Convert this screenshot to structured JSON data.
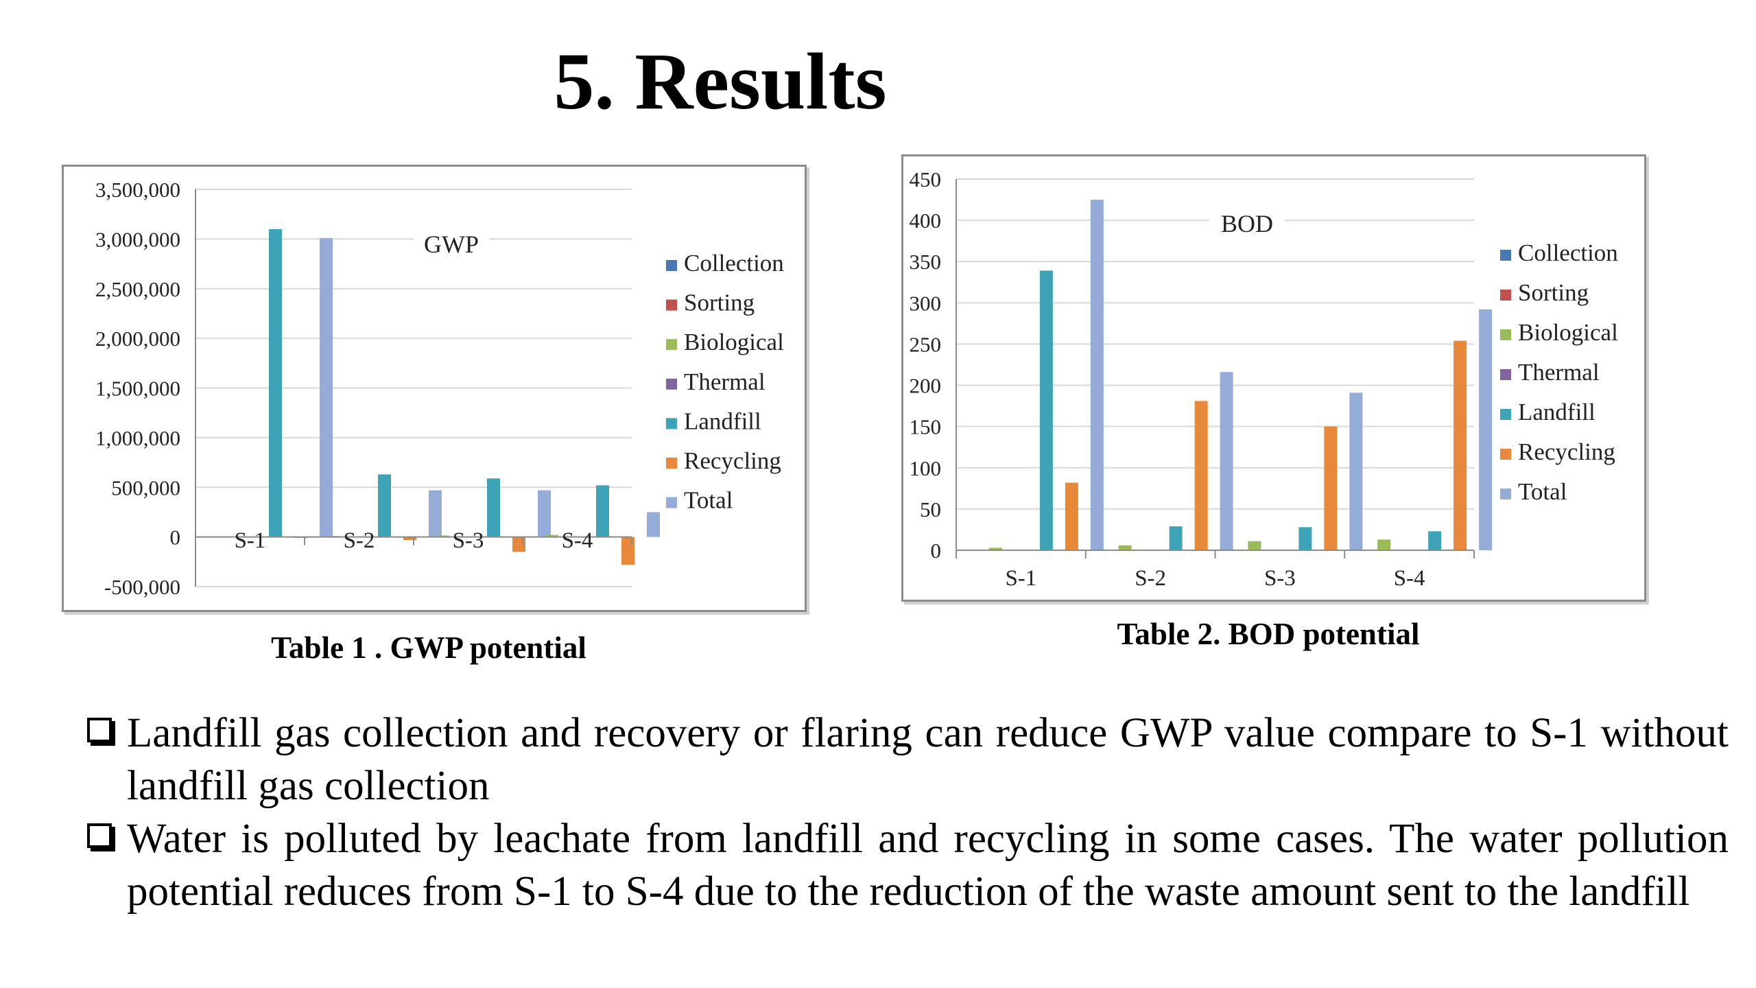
{
  "slide": {
    "title": "5. Results",
    "bullets": [
      "Landfill gas collection and recovery or flaring can reduce GWP value compare to S-1 without landfill gas collection",
      "Water is polluted by leachate from landfill and recycling in some cases. The water pollution potential reduces from S-1 to S-4 due to the reduction of the waste amount sent to the landfill"
    ],
    "bullet_icon": "hollow-square-box-icon"
  },
  "colors": {
    "Collection": "#4a78b0",
    "Sorting": "#c0504d",
    "Biological": "#9bbb59",
    "Thermal": "#7f64a2",
    "Landfill": "#3fa3b8",
    "Recycling": "#e8883a",
    "Total": "#96acd8"
  },
  "chart_data": [
    {
      "type": "bar",
      "title": "GWP",
      "caption": "Table 1 . GWP potential",
      "categories": [
        "S-1",
        "S-2",
        "S-3",
        "S-4"
      ],
      "series": [
        {
          "name": "Collection",
          "values": [
            0,
            0,
            0,
            0
          ]
        },
        {
          "name": "Sorting",
          "values": [
            0,
            0,
            0,
            0
          ]
        },
        {
          "name": "Biological",
          "values": [
            0,
            5000,
            15000,
            20000
          ]
        },
        {
          "name": "Thermal",
          "values": [
            0,
            0,
            0,
            0
          ]
        },
        {
          "name": "Landfill",
          "values": [
            3100000,
            630000,
            590000,
            520000
          ]
        },
        {
          "name": "Recycling",
          "values": [
            -10000,
            -30000,
            -150000,
            -280000
          ]
        },
        {
          "name": "Total",
          "values": [
            3010000,
            470000,
            470000,
            250000
          ]
        }
      ],
      "ylim": [
        -500000,
        3500000
      ],
      "yticks": [
        -500000,
        0,
        500000,
        1000000,
        1500000,
        2000000,
        2500000,
        3000000,
        3500000
      ],
      "ytick_labels": [
        "-500,000",
        "0",
        "500,000",
        "1,000,000",
        "1,500,000",
        "2,000,000",
        "2,500,000",
        "3,000,000",
        "3,500,000"
      ],
      "grid": true,
      "legend": "right"
    },
    {
      "type": "bar",
      "title": "BOD",
      "caption": "Table 2. BOD potential",
      "categories": [
        "S-1",
        "S-2",
        "S-3",
        "S-4"
      ],
      "series": [
        {
          "name": "Collection",
          "values": [
            0,
            0,
            0,
            0
          ]
        },
        {
          "name": "Sorting",
          "values": [
            0,
            0,
            0,
            0
          ]
        },
        {
          "name": "Biological",
          "values": [
            3,
            6,
            11,
            13
          ]
        },
        {
          "name": "Thermal",
          "values": [
            0,
            0,
            0,
            0
          ]
        },
        {
          "name": "Landfill",
          "values": [
            339,
            29,
            28,
            23
          ]
        },
        {
          "name": "Recycling",
          "values": [
            82,
            181,
            150,
            254
          ]
        },
        {
          "name": "Total",
          "values": [
            425,
            216,
            191,
            292
          ]
        }
      ],
      "ylim": [
        0,
        450
      ],
      "yticks": [
        0,
        50,
        100,
        150,
        200,
        250,
        300,
        350,
        400,
        450
      ],
      "ytick_labels": [
        "0",
        "50",
        "100",
        "150",
        "200",
        "250",
        "300",
        "350",
        "400",
        "450"
      ],
      "grid": true,
      "legend": "right"
    }
  ]
}
